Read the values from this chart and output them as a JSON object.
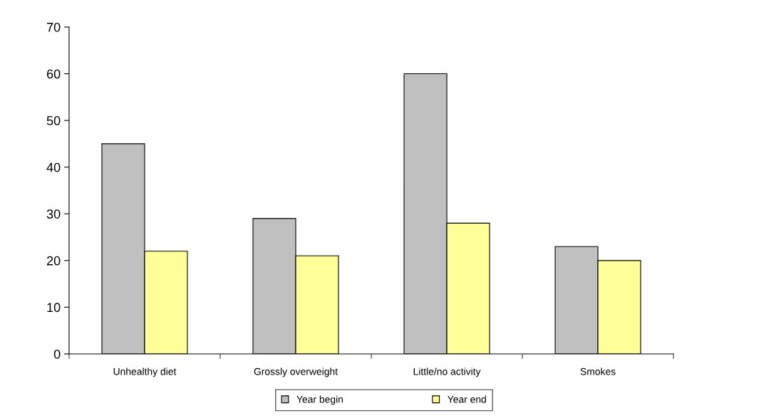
{
  "chart_data": {
    "type": "bar",
    "categories": [
      "Unhealthy diet",
      "Grossly overweight",
      "Little/no activity",
      "Smokes"
    ],
    "series": [
      {
        "name": "Year begin",
        "color": "#c0c0c0",
        "values": [
          45,
          29,
          60,
          23
        ]
      },
      {
        "name": "Year end",
        "color": "#ffff99",
        "values": [
          22,
          21,
          28,
          20
        ]
      }
    ],
    "ylim": [
      0,
      70
    ],
    "yticks": [
      0,
      10,
      20,
      30,
      40,
      50,
      60,
      70
    ],
    "grid": false,
    "legend": "bottom"
  }
}
